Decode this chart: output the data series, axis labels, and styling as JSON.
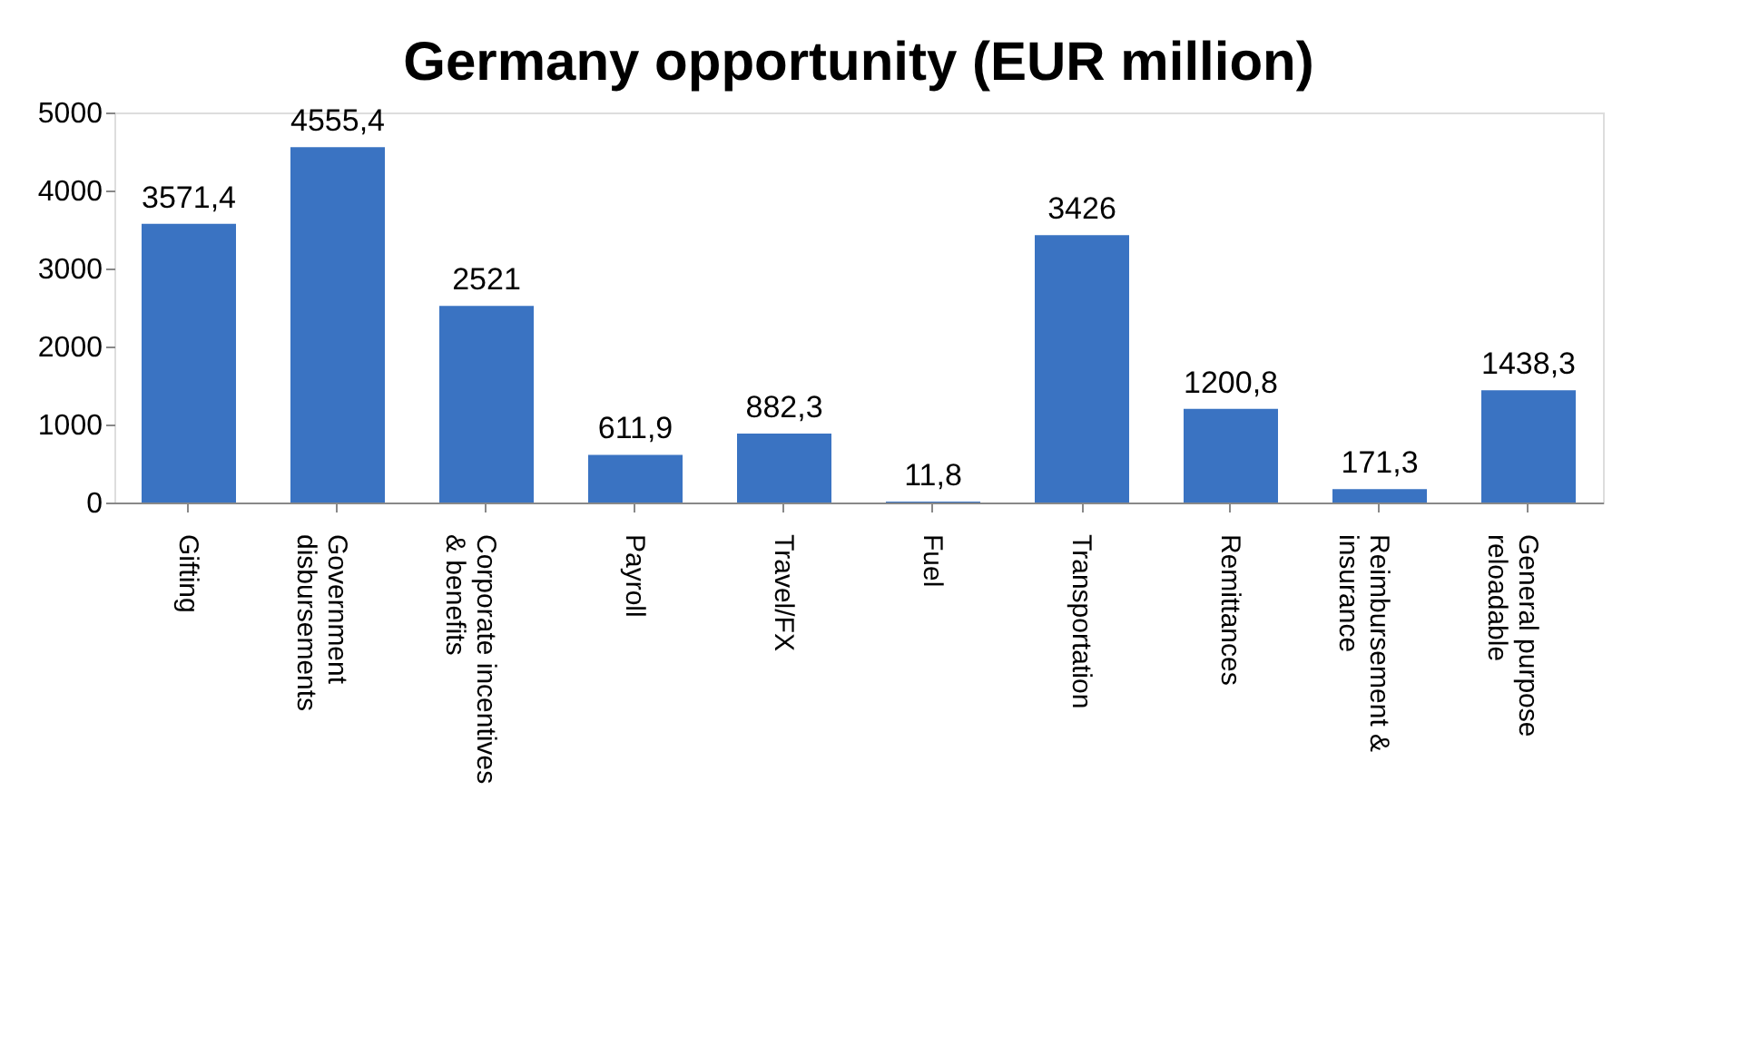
{
  "chart_data": {
    "type": "bar",
    "title": "Germany opportunity (EUR million)",
    "categories": [
      "Gifting",
      "Government disbursements",
      "Corporate incentives & benefits",
      "Payroll",
      "Travel/FX",
      "Fuel",
      "Transportation",
      "Remittances",
      "Reimbursement & insurance",
      "General purpose reloadable"
    ],
    "values": [
      3571.4,
      4555.4,
      2521,
      611.9,
      882.3,
      11.8,
      3426,
      1200.8,
      171.3,
      1438.3
    ],
    "value_labels": [
      "3571,4",
      "4555,4",
      "2521",
      "611,9",
      "882,3",
      "11,8",
      "3426",
      "1200,8",
      "171,3",
      "1438,3"
    ],
    "color": "#3a73c2",
    "ylim": [
      0,
      5000
    ],
    "yticks": [
      0,
      1000,
      2000,
      3000,
      4000,
      5000
    ],
    "grid": false
  }
}
